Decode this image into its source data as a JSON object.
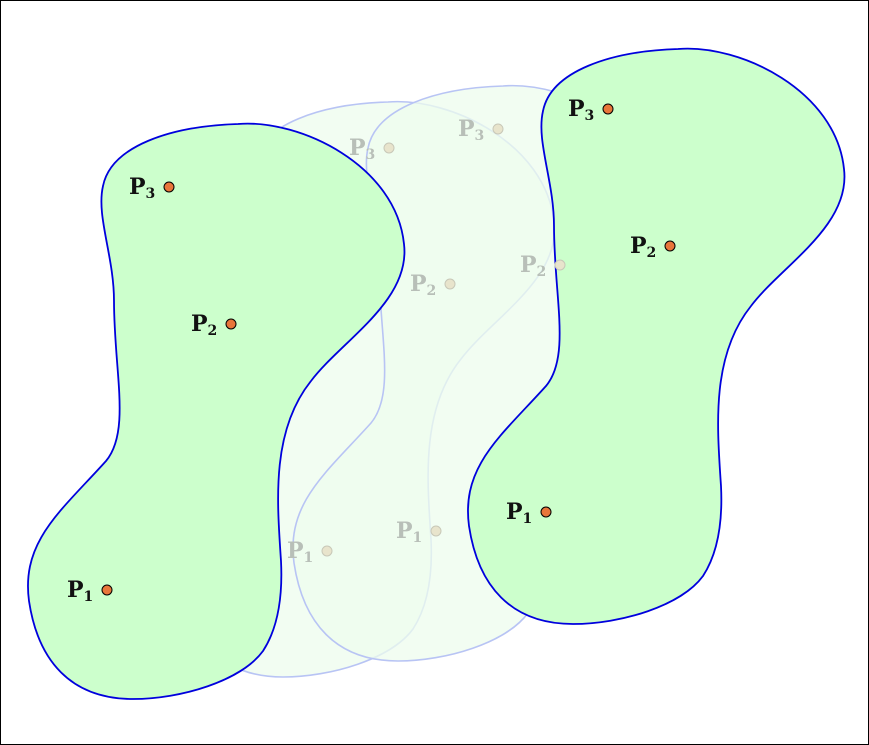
{
  "colors": {
    "solid_fill": "#ccffcc",
    "solid_stroke": "#0000dd",
    "ghost_fill": "#eefcee",
    "ghost_stroke": "#b8c4f4",
    "point_fill": "#e8763a",
    "ghost_point_fill": "#e8e4cc",
    "ghost_point_stroke": "#c8c8b8"
  },
  "shapes": [
    {
      "id": "shape-start",
      "style": "solid",
      "points": [
        {
          "main": "P",
          "sub": "1"
        },
        {
          "main": "P",
          "sub": "2"
        },
        {
          "main": "P",
          "sub": "3"
        }
      ]
    },
    {
      "id": "shape-ghost-1",
      "style": "ghost",
      "points": [
        {
          "main": "P",
          "sub": "1"
        },
        {
          "main": "P",
          "sub": "2"
        },
        {
          "main": "P",
          "sub": "3"
        }
      ]
    },
    {
      "id": "shape-ghost-2",
      "style": "ghost",
      "points": [
        {
          "main": "P",
          "sub": "1"
        },
        {
          "main": "P",
          "sub": "2"
        },
        {
          "main": "P",
          "sub": "3"
        }
      ]
    },
    {
      "id": "shape-end",
      "style": "solid",
      "points": [
        {
          "main": "P",
          "sub": "1"
        },
        {
          "main": "P",
          "sub": "2"
        },
        {
          "main": "P",
          "sub": "3"
        }
      ]
    }
  ]
}
